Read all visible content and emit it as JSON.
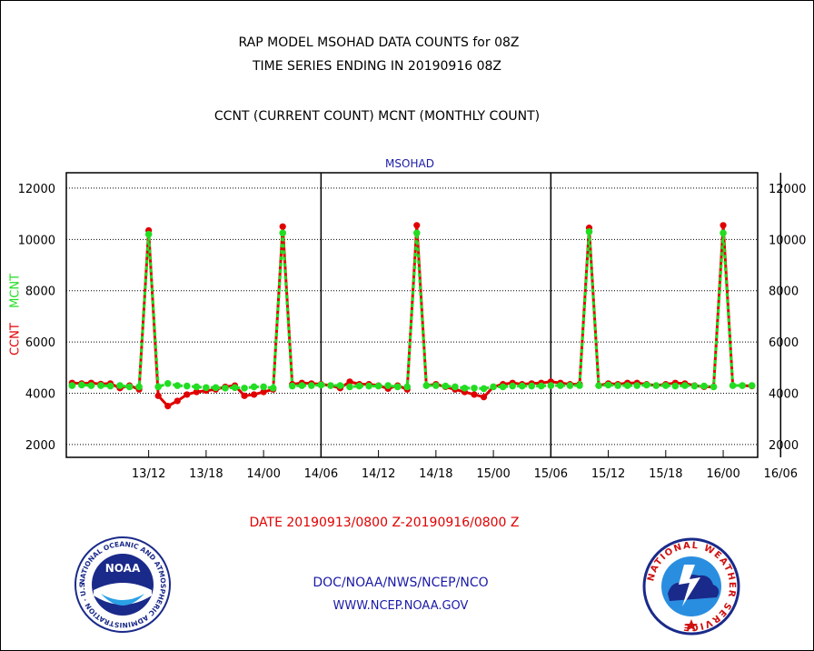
{
  "header": {
    "title_line1": "RAP MODEL MSOHAD DATA COUNTS for 08Z",
    "title_line2": "TIME SERIES ENDING IN 20190916 08Z",
    "subtitle": "CCNT (CURRENT COUNT) MCNT (MONTHLY COUNT)"
  },
  "footer": {
    "date_range": "DATE 20190913/0800 Z-20190916/0800 Z",
    "org": "DOC/NOAA/NWS/NCEP/NCO",
    "url": "WWW.NCEP.NOAA.GOV"
  },
  "logos": {
    "left_name": "NOAA",
    "left_ring_text": "NATIONAL OCEANIC AND ATMOSPHERIC ADMINISTRATION · U.S. DEPARTMENT OF COMMERCE ·",
    "right_ring_text": "NATIONAL WEATHER SERVICE"
  },
  "colors": {
    "ccnt": "#e00000",
    "mcnt": "#22dd22",
    "text_blue": "#1a1aa8",
    "axis": "#000000"
  },
  "chart_data": {
    "type": "line",
    "title": "MSOHAD",
    "ylabel_ccnt": "CCNT",
    "ylabel_mcnt": "MCNT",
    "ylim": [
      1500,
      12600
    ],
    "yticks": [
      2000,
      4000,
      6000,
      8000,
      10000,
      12000
    ],
    "x_start_hours": -8.6,
    "x_end_hours": 63.6,
    "xticks": [
      {
        "hours": 0,
        "label": "13/12"
      },
      {
        "hours": 6,
        "label": "13/18"
      },
      {
        "hours": 12,
        "label": "14/00"
      },
      {
        "hours": 18,
        "label": "14/06"
      },
      {
        "hours": 24,
        "label": "14/12"
      },
      {
        "hours": 30,
        "label": "14/18"
      },
      {
        "hours": 36,
        "label": "15/00"
      },
      {
        "hours": 42,
        "label": "15/06"
      },
      {
        "hours": 48,
        "label": "15/12"
      },
      {
        "hours": 54,
        "label": "15/18"
      },
      {
        "hours": 60,
        "label": "16/00"
      },
      {
        "hours": 66,
        "label": "16/06"
      }
    ],
    "grid": true,
    "day_boundaries_hours": [
      18,
      42,
      66
    ],
    "series": [
      {
        "name": "CCNT",
        "x": [
          -8,
          -7,
          -6,
          -5,
          -4,
          -3,
          -2,
          -1,
          0,
          1,
          2,
          3,
          4,
          5,
          6,
          7,
          8,
          9,
          10,
          11,
          12,
          13,
          14,
          15,
          16,
          17,
          18,
          19,
          20,
          21,
          22,
          23,
          24,
          25,
          26,
          27,
          28,
          29,
          30,
          31,
          32,
          33,
          34,
          35,
          36,
          37,
          38,
          39,
          40,
          41,
          42,
          43,
          44,
          45,
          46,
          47,
          48,
          49,
          50,
          51,
          52,
          53,
          54,
          55,
          56,
          57,
          58,
          59,
          60,
          61,
          62,
          63
        ],
        "values": [
          4400,
          4380,
          4400,
          4360,
          4380,
          4200,
          4300,
          4150,
          10350,
          3900,
          3500,
          3700,
          3950,
          4050,
          4100,
          4150,
          4250,
          4300,
          3900,
          3950,
          4050,
          4150,
          10500,
          4350,
          4400,
          4380,
          4350,
          4300,
          4200,
          4450,
          4350,
          4350,
          4300,
          4180,
          4300,
          4150,
          10550,
          4300,
          4350,
          4250,
          4150,
          4050,
          3950,
          3850,
          4250,
          4350,
          4400,
          4350,
          4380,
          4400,
          4450,
          4400,
          4350,
          4350,
          10450,
          4300,
          4380,
          4350,
          4400,
          4400,
          4350,
          4300,
          4350,
          4400,
          4380,
          4300,
          4250,
          4250,
          10550,
          4300,
          4300,
          4280
        ]
      },
      {
        "name": "MCNT",
        "x": [
          -8,
          -7,
          -6,
          -5,
          -4,
          -3,
          -2,
          -1,
          0,
          1,
          2,
          3,
          4,
          5,
          6,
          7,
          8,
          9,
          10,
          11,
          12,
          13,
          14,
          15,
          16,
          17,
          18,
          19,
          20,
          21,
          22,
          23,
          24,
          25,
          26,
          27,
          28,
          29,
          30,
          31,
          32,
          33,
          34,
          35,
          36,
          37,
          38,
          39,
          40,
          41,
          42,
          43,
          44,
          45,
          46,
          47,
          48,
          49,
          50,
          51,
          52,
          53,
          54,
          55,
          56,
          57,
          58,
          59,
          60,
          61,
          62,
          63
        ],
        "values": [
          4300,
          4320,
          4300,
          4300,
          4280,
          4300,
          4250,
          4250,
          10200,
          4250,
          4380,
          4300,
          4280,
          4250,
          4220,
          4220,
          4200,
          4220,
          4200,
          4250,
          4250,
          4200,
          10250,
          4280,
          4300,
          4300,
          4320,
          4300,
          4300,
          4250,
          4280,
          4280,
          4280,
          4300,
          4250,
          4250,
          10250,
          4300,
          4300,
          4280,
          4250,
          4200,
          4200,
          4180,
          4250,
          4250,
          4280,
          4280,
          4280,
          4280,
          4300,
          4300,
          4300,
          4300,
          10300,
          4300,
          4320,
          4300,
          4300,
          4300,
          4320,
          4300,
          4300,
          4280,
          4300,
          4280,
          4280,
          4250,
          10250,
          4300,
          4300,
          4300
        ]
      }
    ]
  }
}
